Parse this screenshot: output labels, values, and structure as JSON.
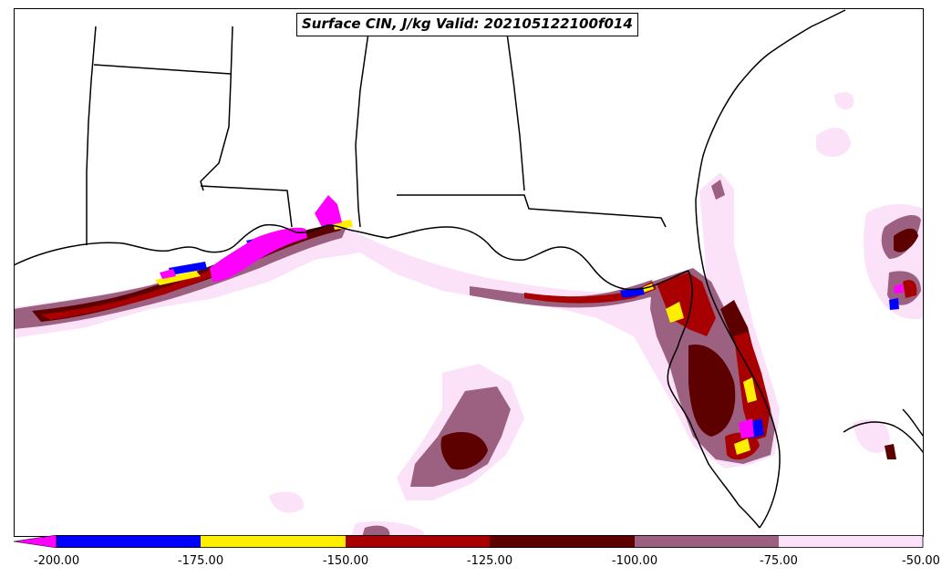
{
  "map": {
    "title": "Surface CIN, J/kg Valid: 202105122100f014",
    "fill_colors": {
      "lt_-200": "#ff00ff",
      "-200_-175": "#0000ff",
      "-175_-150": "#ffee00",
      "-150_-125": "#a80000",
      "-125_-100": "#5c0000",
      "-100_-75": "#9c6080",
      "-75_-50": "#fbe2f8"
    }
  },
  "colorbar": {
    "ticks": [
      "-200.00",
      "-175.00",
      "-150.00",
      "-125.00",
      "-100.00",
      "-75.00",
      "-50.00"
    ],
    "segments": [
      {
        "range": "-200 to -175",
        "color": "#0000ff"
      },
      {
        "range": "-175 to -150",
        "color": "#ffee00"
      },
      {
        "range": "-150 to -125",
        "color": "#a80000"
      },
      {
        "range": "-125 to -100",
        "color": "#5c0000"
      },
      {
        "range": "-100 to -75",
        "color": "#9c6080"
      },
      {
        "range": "-75 to -50",
        "color": "#fbe2f8"
      }
    ],
    "extend_color": "#ff00ff"
  }
}
